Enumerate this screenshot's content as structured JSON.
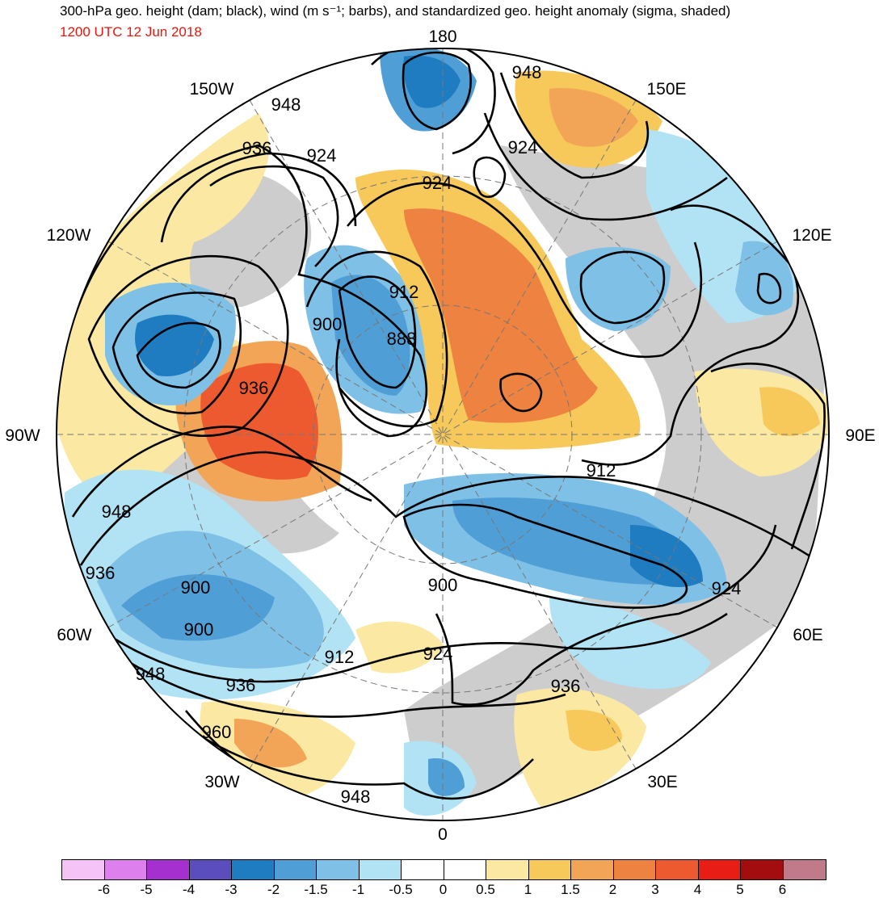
{
  "header": {
    "title": "300-hPa geo. height (dam; black), wind (m s⁻¹; barbs), and standardized geo. height anomaly (sigma, shaded)",
    "valid_time": "1200 UTC 12 Jun 2018"
  },
  "map": {
    "projection": "north-polar-stereographic",
    "longitude_labels": [
      "180",
      "150E",
      "120E",
      "90E",
      "60E",
      "30E",
      "0",
      "30W",
      "60W",
      "90W",
      "120W",
      "150W"
    ],
    "contour_labels": [
      "948",
      "948",
      "936",
      "924",
      "924",
      "924",
      "912",
      "900",
      "888",
      "936",
      "948",
      "936",
      "900",
      "900",
      "912",
      "924",
      "912",
      "900",
      "924",
      "936",
      "948",
      "936",
      "960",
      "948"
    ],
    "anomaly_colors": {
      "neg6": "#f5c3f5",
      "neg5": "#dd80ee",
      "neg4": "#a62fd0",
      "neg3": "#5b4dbd",
      "neg2": "#1f7cc0",
      "neg15": "#4f9fd6",
      "neg1": "#7fc0e6",
      "neg05": "#b2e3f4",
      "zero": "#ffffff",
      "pos05": "#fbe8a2",
      "pos1": "#f6c95a",
      "pos15": "#f3a557",
      "pos2": "#ee8240",
      "pos3": "#ee5a30",
      "pos4": "#e81e16",
      "pos5": "#a40d0f",
      "pos6": "#c07a8a",
      "land": "#cdcdcd",
      "contour": "#000000"
    }
  },
  "colorbar": {
    "labels": [
      "-6",
      "-5",
      "-4",
      "-3",
      "-2",
      "-1.5",
      "-1",
      "-0.5",
      "0",
      "0.5",
      "1",
      "1.5",
      "2",
      "3",
      "4",
      "5",
      "6"
    ],
    "colors": [
      "#f5c3f5",
      "#dd80ee",
      "#a62fd0",
      "#5b4dbd",
      "#1f7cc0",
      "#4f9fd6",
      "#7fc0e6",
      "#b2e3f4",
      "#ffffff",
      "#ffffff",
      "#fbe8a2",
      "#f6c95a",
      "#f3a557",
      "#ee8240",
      "#ee5a30",
      "#e81e16",
      "#a40d0f",
      "#c07a8a"
    ]
  }
}
